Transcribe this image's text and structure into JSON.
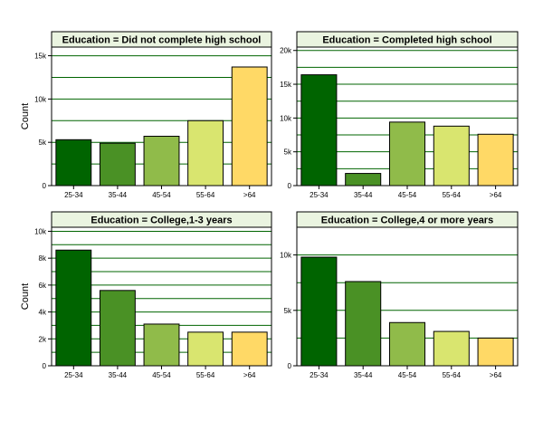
{
  "colors": {
    "bar_fills": [
      "#006400",
      "#4a9125",
      "#90bb4a",
      "#d9e56f",
      "#ffd966"
    ],
    "title_band": "#eaf4e0",
    "grid": "#006400",
    "border": "#000000"
  },
  "chart_data": [
    {
      "type": "bar",
      "title": "Education = Did not complete high school",
      "categories": [
        "25-34",
        "35-44",
        "45-54",
        "55-64",
        ">64"
      ],
      "values": [
        5300,
        4900,
        5700,
        7500,
        13700
      ],
      "ylabel": "Count",
      "ylim": [
        0,
        16000
      ],
      "yticks": [
        0,
        5000,
        10000,
        15000
      ],
      "ytick_labels": [
        "0",
        "5k",
        "10k",
        "15k"
      ],
      "gridlines": [
        2500,
        5000,
        7500,
        10000,
        12500,
        15000
      ],
      "grid": true
    },
    {
      "type": "bar",
      "title": "Education = Completed high school",
      "categories": [
        "25-34",
        "35-44",
        "45-54",
        "55-64",
        ">64"
      ],
      "values": [
        16400,
        1800,
        9400,
        8800,
        7600
      ],
      "ylabel": "",
      "ylim": [
        0,
        20500
      ],
      "yticks": [
        0,
        5000,
        10000,
        15000,
        20000
      ],
      "ytick_labels": [
        "0",
        "5k",
        "10k",
        "15k",
        "20k"
      ],
      "gridlines": [
        2500,
        5000,
        7500,
        10000,
        12500,
        15000,
        17500,
        20000
      ],
      "grid": true
    },
    {
      "type": "bar",
      "title": "Education = College,1-3 years",
      "categories": [
        "25-34",
        "35-44",
        "45-54",
        "55-64",
        ">64"
      ],
      "values": [
        8600,
        5600,
        3100,
        2500,
        2500
      ],
      "ylabel": "Count",
      "ylim": [
        0,
        10300
      ],
      "yticks": [
        0,
        2000,
        4000,
        6000,
        8000,
        10000
      ],
      "ytick_labels": [
        "0",
        "2k",
        "4k",
        "6k",
        "8k",
        "10k"
      ],
      "gridlines": [
        1000,
        2000,
        3000,
        4000,
        5000,
        6000,
        7000,
        8000,
        9000,
        10000
      ],
      "grid": true
    },
    {
      "type": "bar",
      "title": "Education = College,4 or more years",
      "categories": [
        "25-34",
        "35-44",
        "45-54",
        "55-64",
        ">64"
      ],
      "values": [
        9800,
        7600,
        3900,
        3100,
        2500
      ],
      "ylabel": "",
      "ylim": [
        0,
        12500
      ],
      "yticks": [
        0,
        5000,
        10000
      ],
      "ytick_labels": [
        "0",
        "5k",
        "10k"
      ],
      "gridlines": [
        2500,
        5000,
        7500,
        10000,
        12500
      ],
      "grid": true
    }
  ]
}
